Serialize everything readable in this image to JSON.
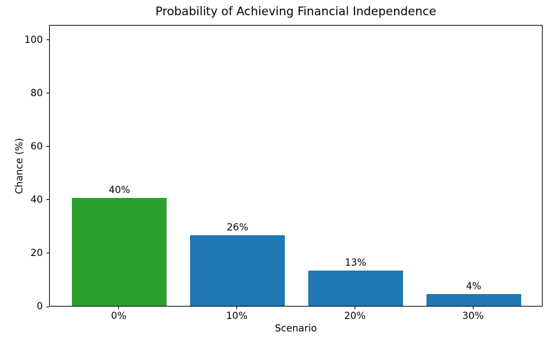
{
  "chart_data": {
    "type": "bar",
    "title": "Probability of Achieving Financial Independence",
    "xlabel": "Scenario",
    "ylabel": "Chance (%)",
    "categories": [
      "0%",
      "10%",
      "20%",
      "30%"
    ],
    "x_positions": [
      0,
      1,
      2,
      3
    ],
    "values": [
      40.5,
      26.5,
      13.3,
      4.3
    ],
    "bar_labels": [
      "40%",
      "26%",
      "13%",
      "4%"
    ],
    "bar_colors": [
      "#2ca02c",
      "#1f77b4",
      "#1f77b4",
      "#1f77b4"
    ],
    "bar_width_units": 0.8,
    "yticks": [
      0,
      20,
      40,
      60,
      80,
      100
    ],
    "ylim": [
      0,
      105.7
    ],
    "xlim": [
      -0.59,
      3.59
    ],
    "grid": false,
    "legend": null,
    "background_color": "#ffffff",
    "spine_color": "#000000",
    "text_color": "#000000"
  }
}
